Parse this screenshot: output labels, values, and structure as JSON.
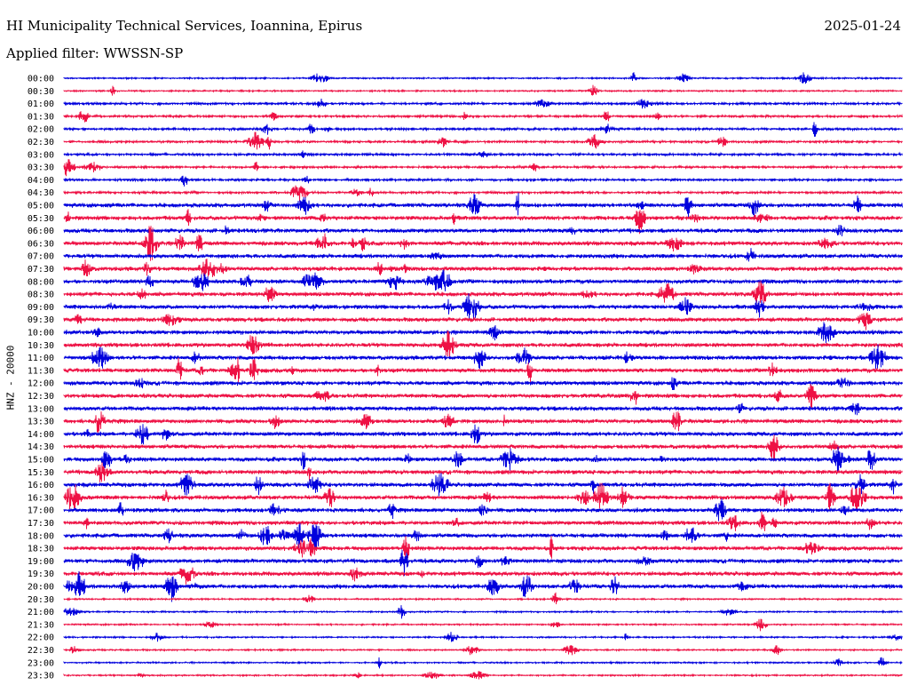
{
  "header": {
    "title": "HI Municipality Technical Services, Ioannina, Epirus",
    "date": "2025-01-24",
    "filter": "Applied filter: WWSSN-SP"
  },
  "chart_data": {
    "type": "line",
    "title": "HI Municipality Technical Services, Ioannina, Epirus",
    "subtitle": "Applied filter: WWSSN-SP",
    "ylabel": "HNZ - 20000",
    "xlabel": "",
    "categories": [
      "00:00",
      "00:30",
      "01:00",
      "01:30",
      "02:00",
      "02:30",
      "03:00",
      "03:30",
      "04:00",
      "04:30",
      "05:00",
      "05:30",
      "06:00",
      "06:30",
      "07:00",
      "07:30",
      "08:00",
      "08:30",
      "09:00",
      "09:30",
      "10:00",
      "10:30",
      "11:00",
      "11:30",
      "12:00",
      "12:30",
      "13:00",
      "13:30",
      "14:00",
      "14:30",
      "15:00",
      "15:30",
      "16:00",
      "16:30",
      "17:00",
      "17:30",
      "18:00",
      "18:30",
      "19:00",
      "19:30",
      "20:00",
      "20:30",
      "21:00",
      "21:30",
      "22:00",
      "22:30",
      "23:00",
      "23:30"
    ],
    "series": [
      {
        "color": "#0000dd"
      },
      {
        "color": "#ee1144"
      }
    ],
    "grid": false,
    "legend": "none"
  }
}
